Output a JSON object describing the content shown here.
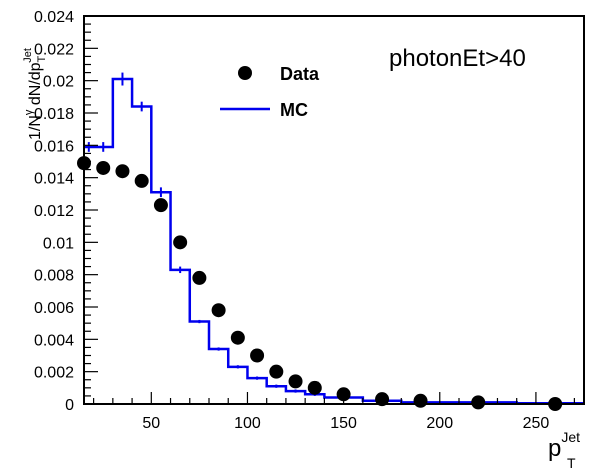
{
  "chart_data": {
    "type": "scatter",
    "xlim": [
      15,
      275
    ],
    "ylim": [
      0,
      0.024
    ],
    "x_ticks": [
      50,
      100,
      150,
      200,
      250
    ],
    "y_ticks": [
      0,
      0.002,
      0.004,
      0.006,
      0.008,
      0.01,
      0.012,
      0.014,
      0.016,
      0.018,
      0.02,
      0.022,
      0.024
    ],
    "x_tick_labels": [
      "50",
      "100",
      "150",
      "200",
      "250"
    ],
    "y_tick_labels": [
      "0",
      "0.002",
      "0.004",
      "0.006",
      "0.008",
      "0.01",
      "0.012",
      "0.014",
      "0.016",
      "0.018",
      "0.02",
      "0.022",
      "0.024"
    ],
    "xlabel": "p",
    "xlabel_sub": "T",
    "xlabel_sup": "Jet",
    "ylabel": "1/N",
    "ylabel_sup": "γ",
    "ylabel_rest": " dN/dp",
    "ylabel_rest_sub": "T",
    "ylabel_rest_sup": "Jet",
    "annotation": "photonEt>40",
    "legend_position": "top-center",
    "grid": false,
    "series": [
      {
        "name": "Data",
        "style": "markers",
        "color": "#000000",
        "x": [
          15,
          25,
          35,
          45,
          55,
          65,
          75,
          85,
          95,
          105,
          115,
          125,
          135,
          150,
          170,
          190,
          220,
          260
        ],
        "y": [
          0.0149,
          0.0146,
          0.0144,
          0.0138,
          0.0123,
          0.01,
          0.0078,
          0.0058,
          0.0041,
          0.003,
          0.002,
          0.0014,
          0.001,
          0.0006,
          0.0003,
          0.0002,
          0.0001,
          0.0
        ]
      },
      {
        "name": "MC",
        "style": "step",
        "color": "#0000ee",
        "bin_edges": [
          15,
          20,
          30,
          40,
          50,
          60,
          70,
          80,
          90,
          100,
          110,
          120,
          130,
          140,
          160,
          180,
          200,
          240,
          275
        ],
        "y": [
          0.0159,
          0.0159,
          0.0201,
          0.0184,
          0.0131,
          0.0083,
          0.0051,
          0.0034,
          0.0023,
          0.0016,
          0.0011,
          0.0008,
          0.0006,
          0.0004,
          0.0002,
          0.0001,
          0.0001,
          5e-05
        ],
        "errors": [
          0.0003,
          0.0003,
          0.0004,
          0.0003,
          0.0003,
          0.0002,
          0.0001,
          0.0001,
          0.0001,
          0.0001,
          0.0001,
          0.0001,
          0.0001,
          0.0001,
          0.0001,
          0.0001,
          0.0001,
          0.0001
        ]
      }
    ]
  }
}
